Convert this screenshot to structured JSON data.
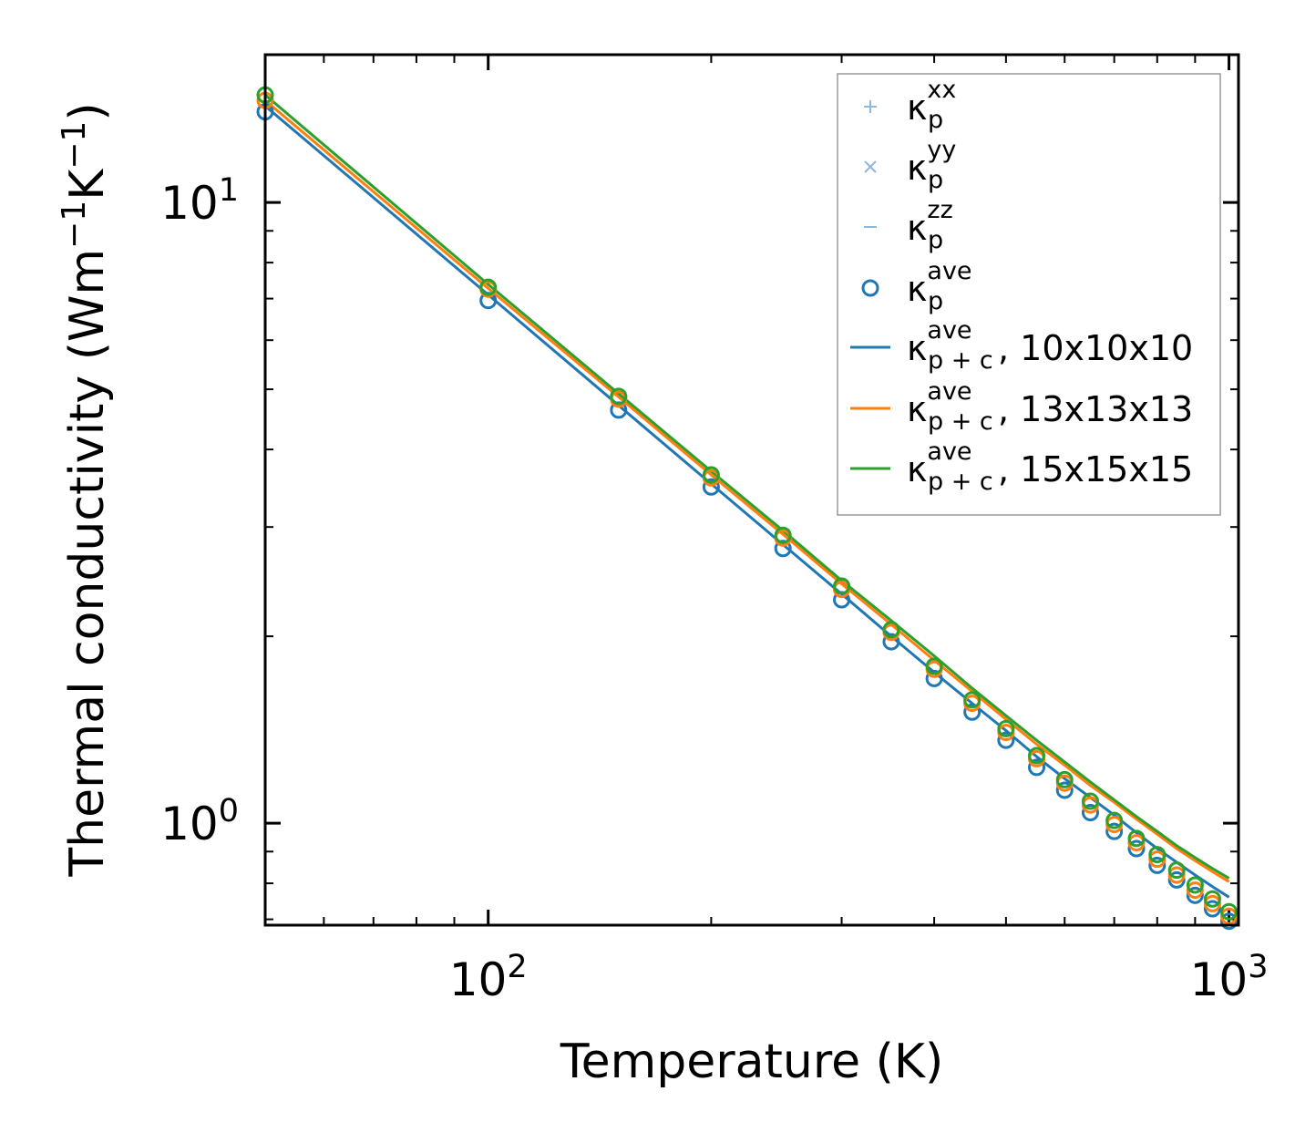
{
  "chart_data": {
    "type": "scatter",
    "xscale": "log",
    "yscale": "log",
    "xlim": [
      50,
      1030
    ],
    "ylim": [
      0.685,
      17.3
    ],
    "xlabel": "Temperature (K)",
    "ylabel": {
      "main": "Thermal conductivity (Wm",
      "sup1": "−1",
      "mid": "K",
      "sup2": "−1",
      "end": ")"
    },
    "x_major_ticks": [
      {
        "value": 100,
        "base": "10",
        "exp": "2"
      },
      {
        "value": 1000,
        "base": "10",
        "exp": "3"
      }
    ],
    "y_major_ticks": [
      {
        "value": 1,
        "base": "10",
        "exp": "0"
      },
      {
        "value": 10,
        "base": "10",
        "exp": "1"
      }
    ],
    "x": [
      50,
      100,
      150,
      200,
      250,
      300,
      350,
      400,
      450,
      500,
      550,
      600,
      650,
      700,
      750,
      800,
      850,
      900,
      950,
      1000
    ],
    "series": [
      {
        "name": "κp ave (10x10x10)",
        "kind": "markers",
        "color": "#1f77b4",
        "values": [
          14.0,
          6.95,
          4.63,
          3.48,
          2.77,
          2.29,
          1.96,
          1.71,
          1.51,
          1.36,
          1.23,
          1.13,
          1.04,
          0.97,
          0.91,
          0.855,
          0.81,
          0.765,
          0.728,
          0.695
        ]
      },
      {
        "name": "κp ave (13x13x13)",
        "kind": "markers",
        "color": "#ff7f0e",
        "values": [
          14.6,
          7.25,
          4.82,
          3.6,
          2.88,
          2.38,
          2.03,
          1.77,
          1.56,
          1.4,
          1.27,
          1.16,
          1.07,
          0.995,
          0.93,
          0.875,
          0.825,
          0.78,
          0.742,
          0.708
        ]
      },
      {
        "name": "κp ave (15x15x15)",
        "kind": "markers",
        "color": "#2ca02c",
        "values": [
          14.9,
          7.3,
          4.87,
          3.64,
          2.91,
          2.41,
          2.05,
          1.79,
          1.58,
          1.42,
          1.285,
          1.175,
          1.085,
          1.01,
          0.945,
          0.89,
          0.84,
          0.795,
          0.755,
          0.72
        ]
      },
      {
        "name": "κp+c ave, 10x10x10",
        "kind": "line",
        "color": "#1f77b4",
        "values": [
          14.3,
          7.1,
          4.71,
          3.52,
          2.81,
          2.34,
          2.0,
          1.75,
          1.56,
          1.41,
          1.28,
          1.18,
          1.1,
          1.03,
          0.965,
          0.91,
          0.865,
          0.825,
          0.79,
          0.76
        ]
      },
      {
        "name": "κp+c ave, 13x13x13",
        "kind": "line",
        "color": "#ff7f0e",
        "values": [
          14.6,
          7.27,
          4.86,
          3.64,
          2.92,
          2.43,
          2.09,
          1.83,
          1.63,
          1.47,
          1.34,
          1.24,
          1.15,
          1.08,
          1.015,
          0.96,
          0.91,
          0.87,
          0.835,
          0.805
        ]
      },
      {
        "name": "κp+c ave, 15x15x15",
        "kind": "line",
        "color": "#2ca02c",
        "values": [
          14.9,
          7.38,
          4.92,
          3.69,
          2.96,
          2.46,
          2.12,
          1.86,
          1.65,
          1.49,
          1.36,
          1.255,
          1.165,
          1.09,
          1.025,
          0.97,
          0.92,
          0.88,
          0.845,
          0.815
        ]
      }
    ],
    "legend": {
      "position": "top-right",
      "entries": [
        {
          "kind": "plus",
          "color": "#8fb8de",
          "label_main": "κ",
          "sub": "p",
          "sup": "xx",
          "suffix": ""
        },
        {
          "kind": "cross",
          "color": "#8fb8de",
          "label_main": "κ",
          "sub": "p",
          "sup": "yy",
          "suffix": ""
        },
        {
          "kind": "dash",
          "color": "#8fb8de",
          "label_main": "κ",
          "sub": "p",
          "sup": "zz",
          "suffix": ""
        },
        {
          "kind": "circle",
          "color": "#1f77b4",
          "label_main": "κ",
          "sub": "p",
          "sup": "ave",
          "suffix": ""
        },
        {
          "kind": "line",
          "color": "#1f77b4",
          "label_main": "κ",
          "sub": "p + c",
          "sup": "ave",
          "suffix": ", 10x10x10"
        },
        {
          "kind": "line",
          "color": "#ff7f0e",
          "label_main": "κ",
          "sub": "p + c",
          "sup": "ave",
          "suffix": ", 13x13x13"
        },
        {
          "kind": "line",
          "color": "#2ca02c",
          "label_main": "κ",
          "sub": "p + c",
          "sup": "ave",
          "suffix": ", 15x15x15"
        }
      ]
    }
  }
}
